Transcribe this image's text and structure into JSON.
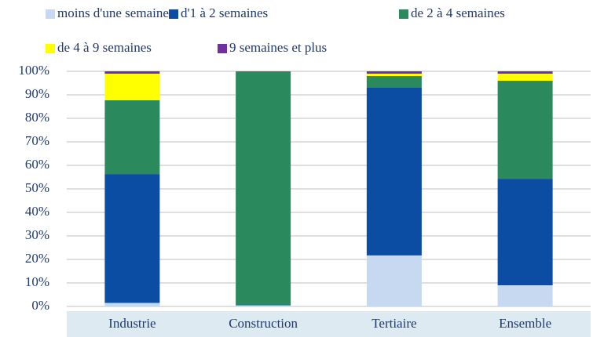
{
  "chart_data": {
    "type": "stacked_bar",
    "categories": [
      "Industrie",
      "Construction",
      "Tertiaire",
      "Ensemble"
    ],
    "series": [
      {
        "name": "moins d'une semaine",
        "color": "#c6d9f1",
        "values": [
          1.5,
          0.5,
          21.7,
          9
        ]
      },
      {
        "name": "d'1 à 2 semaines",
        "color": "#0a4da3",
        "values": [
          54.8,
          0.3,
          71.3,
          45.3
        ]
      },
      {
        "name": "de 2 à 4 semaines",
        "color": "#2a8a5e",
        "values": [
          31.4,
          99.2,
          5,
          41.7
        ]
      },
      {
        "name": "de 4 à 9 semaines",
        "color": "#ffff00",
        "values": [
          11.3,
          0,
          1,
          3
        ]
      },
      {
        "name": "9 semaines et plus",
        "color": "#7030a0",
        "values": [
          1,
          0,
          1,
          1
        ]
      }
    ],
    "ylim": [
      0,
      100
    ],
    "yticks": [
      {
        "value": 0,
        "label": "0%"
      },
      {
        "value": 10,
        "label": "10%"
      },
      {
        "value": 20,
        "label": "20%"
      },
      {
        "value": 30,
        "label": "30%"
      },
      {
        "value": 40,
        "label": "40%"
      },
      {
        "value": 50,
        "label": "50%"
      },
      {
        "value": 60,
        "label": "60%"
      },
      {
        "value": 70,
        "label": "70%"
      },
      {
        "value": 80,
        "label": "80%"
      },
      {
        "value": 90,
        "label": "90%"
      },
      {
        "value": 100,
        "label": "100%"
      }
    ],
    "grid": true
  }
}
